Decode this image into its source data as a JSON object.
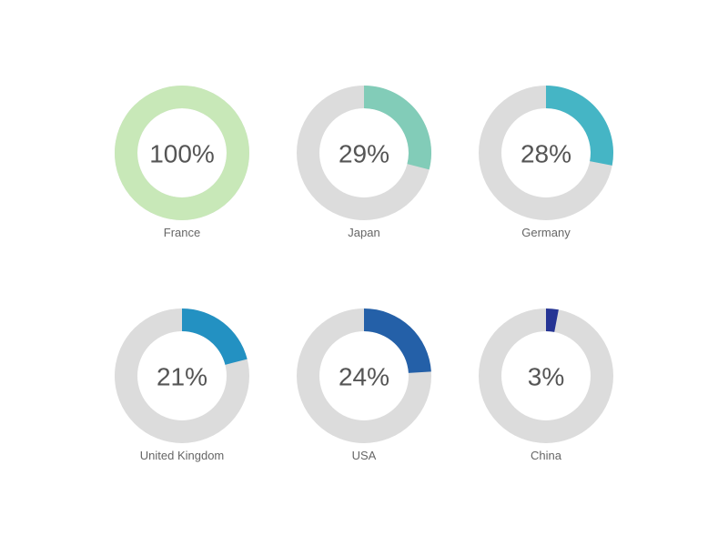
{
  "chart_data": {
    "type": "donut-gauge",
    "unit": "%",
    "max": 100,
    "track_color": "#dcdcdc",
    "items": [
      {
        "label": "France",
        "value": 100,
        "display": "100%",
        "color": "#c8e8b8"
      },
      {
        "label": "Japan",
        "value": 29,
        "display": "29%",
        "color": "#82ccb8"
      },
      {
        "label": "Germany",
        "value": 28,
        "display": "28%",
        "color": "#45b5c5"
      },
      {
        "label": "United Kingdom",
        "value": 21,
        "display": "21%",
        "color": "#2391c2"
      },
      {
        "label": "USA",
        "value": 24,
        "display": "24%",
        "color": "#2460a8"
      },
      {
        "label": "China",
        "value": 3,
        "display": "3%",
        "color": "#253494"
      }
    ]
  }
}
